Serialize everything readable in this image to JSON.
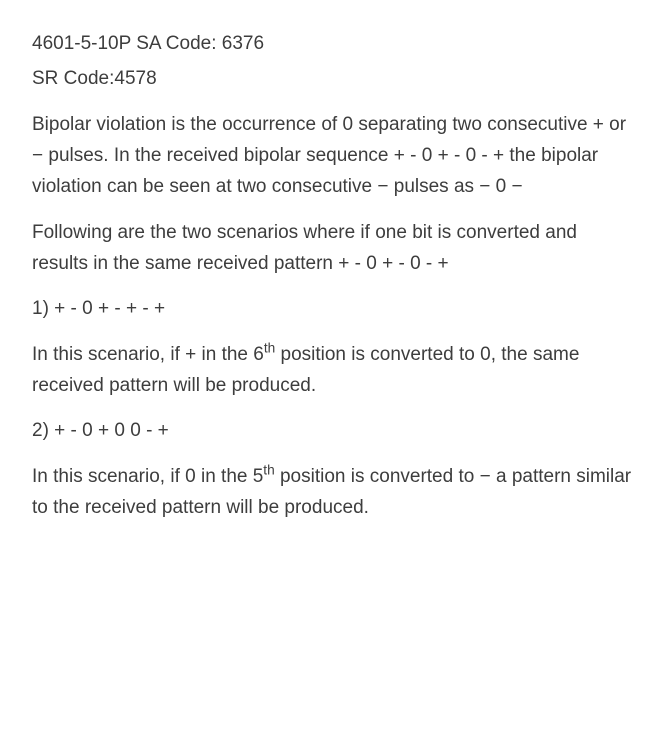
{
  "text_color": "#3d3d3d",
  "background_color": "#ffffff",
  "font_size": 19,
  "header1": "4601-5-10P SA Code: 6376",
  "header2": "SR Code:4578",
  "para1": "Bipolar violation is the occurrence of 0 separating two consecutive + or − pulses. In the received bipolar sequence + - 0 + - 0 - + the bipolar violation can be seen at two consecutive − pulses as − 0 −",
  "para2": "Following are the two scenarios where if one bit is converted and results in the same received pattern + - 0 + - 0 - +",
  "item1": "1) + - 0 + - + - +",
  "para3_a": "In this scenario, if + in the 6",
  "para3_sup": "th",
  "para3_b": " position is converted to 0, the same received pattern will be produced.",
  "item2": "2) + - 0 + 0 0 - +",
  "para4_a": "In this scenario, if 0 in the 5",
  "para4_sup": "th",
  "para4_b": " position is converted to − a pattern similar to the received pattern will be produced."
}
